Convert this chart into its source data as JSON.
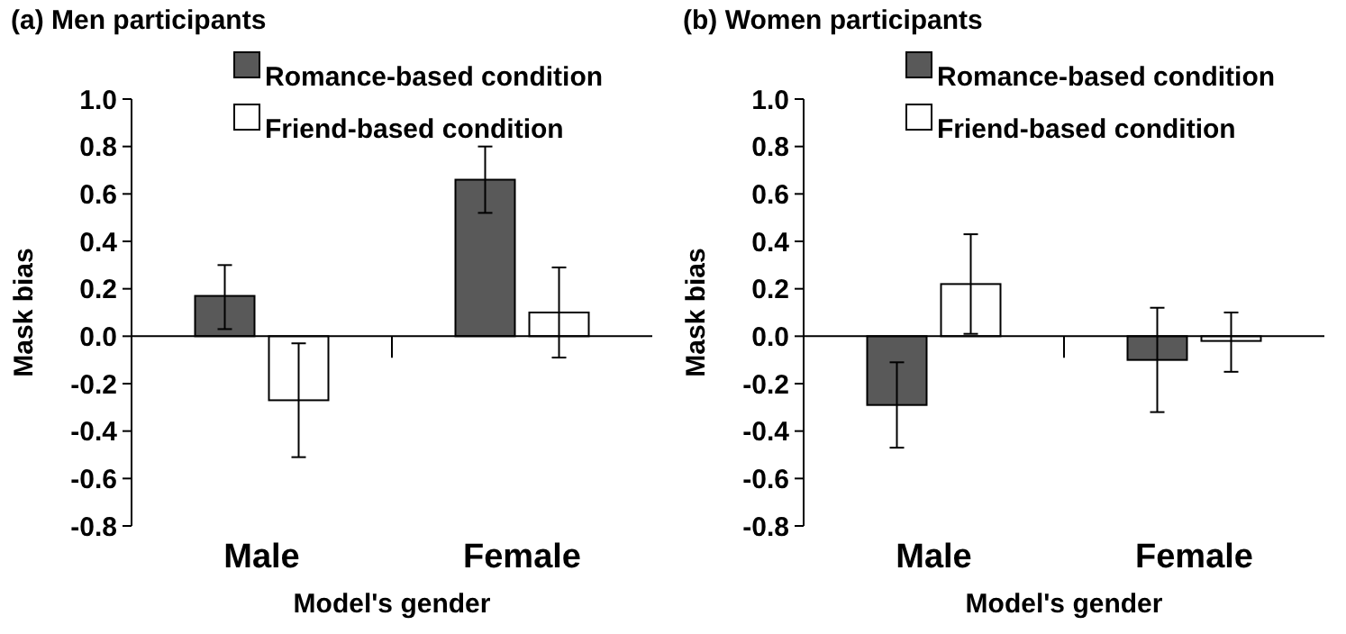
{
  "chart_data": [
    {
      "type": "bar",
      "title": "(a) Men participants",
      "xlabel": "Model's gender",
      "ylabel": "Mask bias",
      "categories": [
        "Male",
        "Female"
      ],
      "ylim": [
        -0.8,
        1.0
      ],
      "yticks": [
        {
          "value": -0.8,
          "label": "-0.8"
        },
        {
          "value": -0.6,
          "label": "-0.6"
        },
        {
          "value": -0.4,
          "label": "-0.4"
        },
        {
          "value": -0.2,
          "label": "-0.2"
        },
        {
          "value": 0,
          "label": "0.0"
        },
        {
          "value": 0.2,
          "label": "0.2"
        },
        {
          "value": 0.4,
          "label": "0.4"
        },
        {
          "value": 0.6,
          "label": "0.6"
        },
        {
          "value": 0.8,
          "label": "0.8"
        },
        {
          "value": 1,
          "label": "1.0"
        }
      ],
      "legend": "top right",
      "series": [
        {
          "name": "Romance-based condition",
          "color": "#595959",
          "values": [
            0.17,
            0.66
          ],
          "errors": [
            [
              0.03,
              0.3
            ],
            [
              0.52,
              0.8
            ]
          ]
        },
        {
          "name": "Friend-based condition",
          "color": "#ffffff",
          "values": [
            -0.27,
            0.1
          ],
          "errors": [
            [
              -0.51,
              -0.03
            ],
            [
              -0.09,
              0.29
            ]
          ]
        }
      ]
    },
    {
      "type": "bar",
      "title": "(b) Women participants",
      "xlabel": "Model's gender",
      "ylabel": "Mask bias",
      "categories": [
        "Male",
        "Female"
      ],
      "ylim": [
        -0.8,
        1.0
      ],
      "yticks": [
        {
          "value": -0.8,
          "label": "-0.8"
        },
        {
          "value": -0.6,
          "label": "-0.6"
        },
        {
          "value": -0.4,
          "label": "-0.4"
        },
        {
          "value": -0.2,
          "label": "-0.2"
        },
        {
          "value": 0,
          "label": "0.0"
        },
        {
          "value": 0.2,
          "label": "0.2"
        },
        {
          "value": 0.4,
          "label": "0.4"
        },
        {
          "value": 0.6,
          "label": "0.6"
        },
        {
          "value": 0.8,
          "label": "0.8"
        },
        {
          "value": 1,
          "label": "1.0"
        }
      ],
      "legend": "top right",
      "series": [
        {
          "name": "Romance-based condition",
          "color": "#595959",
          "values": [
            -0.29,
            -0.1
          ],
          "errors": [
            [
              -0.47,
              -0.11
            ],
            [
              -0.32,
              0.12
            ]
          ]
        },
        {
          "name": "Friend-based condition",
          "color": "#ffffff",
          "values": [
            0.22,
            -0.02
          ],
          "errors": [
            [
              0.01,
              0.43
            ],
            [
              -0.15,
              0.1
            ]
          ]
        }
      ]
    }
  ]
}
